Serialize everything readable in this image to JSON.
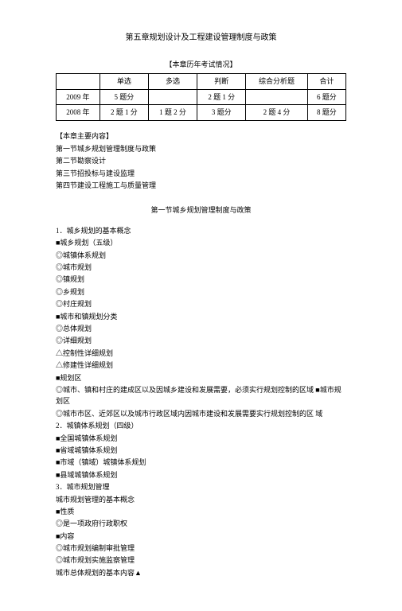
{
  "title": "第五章规划设计及工程建设管理制度与政策",
  "table_heading": "【本章历年考试情况】",
  "table": {
    "columns": [
      "",
      "单选",
      "多选",
      "判断",
      "综合分析题",
      "合计"
    ],
    "rows": [
      [
        "2009 年",
        "5 题分",
        "",
        "2 题 1 分",
        "",
        "6 题分"
      ],
      [
        "2008 年",
        "2 题 1 分",
        "1 题 2 分",
        "3 题分",
        "2 题 4 分",
        "8 题分"
      ]
    ]
  },
  "main_contents_label": "【本章主要内容】",
  "main_contents": [
    "第一节城乡规划管理制度与政策",
    "第二节勘察设计",
    "第三节招投标与建设监理",
    "第四节建设工程施工与质量管理"
  ],
  "section1_title": "第一节城乡规划管理制度与政策",
  "outline": [
    {
      "text": "1．城乡规划的基本概念",
      "indent": 0
    },
    {
      "text": "■城乡规划（五级）",
      "indent": 0
    },
    {
      "text": "◎城镇体系规划",
      "indent": 1
    },
    {
      "text": "◎城市规划",
      "indent": 1
    },
    {
      "text": "◎镇规划",
      "indent": 1
    },
    {
      "text": "◎乡规划",
      "indent": 1
    },
    {
      "text": "◎村庄规划",
      "indent": 1
    },
    {
      "text": "■城市和镇规划分类",
      "indent": 0
    },
    {
      "text": "◎总体规划",
      "indent": 1
    },
    {
      "text": "◎详细规划",
      "indent": 1
    },
    {
      "text": "△控制性详细规划",
      "indent": 2
    },
    {
      "text": "△修建性详细规划",
      "indent": 2
    },
    {
      "text": "■规划区",
      "indent": 0
    },
    {
      "text": "◎城市、镇和村庄的建成区以及因城乡建设和发展需要，必须实行规划控制的区域 ■城市规划区",
      "indent": 1
    },
    {
      "text": "◎城市市区、近郊区以及城市行政区域内因城市建设和发展需要实行规划控制的区 域",
      "indent": 1
    },
    {
      "text": "2．城镇体系规划（四级）",
      "indent": 0
    },
    {
      "text": "■全国城镇体系规划",
      "indent": 0
    },
    {
      "text": "■省域城镇体系规划",
      "indent": 0
    },
    {
      "text": "■市域（镇域）城镇体系规划",
      "indent": 0
    },
    {
      "text": "■县域城镇体系规划",
      "indent": 0
    },
    {
      "text": "3．城市规划管理",
      "indent": 0
    },
    {
      "text": "城市规划管理的基本概念",
      "indent": 0
    },
    {
      "text": "■性质",
      "indent": 0
    },
    {
      "text": "◎是一项政府行政职权",
      "indent": 1
    },
    {
      "text": "■内容",
      "indent": 0
    },
    {
      "text": "◎城市规划编制审批管理",
      "indent": 1
    },
    {
      "text": "◎城市规划实施监察管理",
      "indent": 1
    },
    {
      "text": "城市总体规划的基本内容▲",
      "indent": 0
    }
  ]
}
